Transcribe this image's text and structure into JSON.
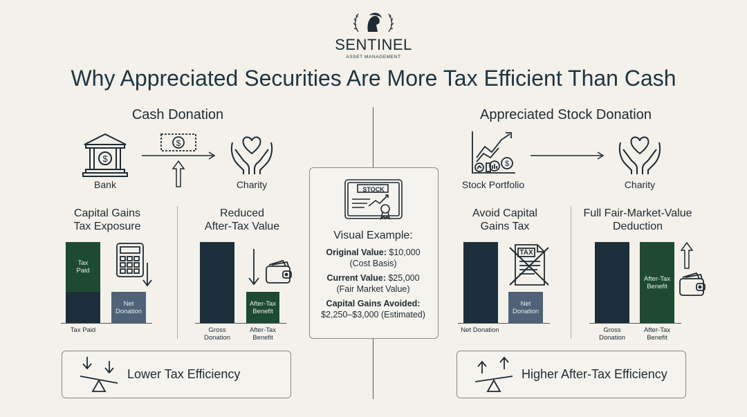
{
  "brand": {
    "name": "SENTINEL",
    "tagline": "ASSET MANAGEMENT"
  },
  "title": "Why Appreciated Securities Are More Tax Efficient Than Cash",
  "cash": {
    "heading": "Cash Donation",
    "bank_label": "Bank",
    "charity_label": "Charity",
    "exposure": {
      "heading_line1": "Capital Gains",
      "heading_line2": "Tax Exposure",
      "bar_tax_paid": "Tax Paid",
      "bar_net_donation": "Net Donation",
      "axis_label": "Tax Paid"
    },
    "reduced": {
      "heading_line1": "Reduced",
      "heading_line2": "After-Tax Value",
      "bar_after_tax": "After-Tax Benefit",
      "axis_gross": "Gross Donation",
      "axis_after_tax": "After-Tax Benefit"
    },
    "footer": "Lower Tax Efficiency"
  },
  "example": {
    "stock_label": "STOCK",
    "heading": "Visual Example:",
    "original_label": "Original Value:",
    "original_value": "$10,000",
    "original_note": "(Cost Basis)",
    "current_label": "Current Value:",
    "current_value": "$25,000",
    "current_note": "(Fair Market Value)",
    "avoided_label": "Capital Gains Avoided:",
    "avoided_value": "$2,250–$3,000 (Estimated)"
  },
  "stock": {
    "heading": "Appreciated Stock Donation",
    "portfolio_label": "Stock Portfolio",
    "charity_label": "Charity",
    "avoid": {
      "heading_line1": "Avoid Capital",
      "heading_line2": "Gains Tax",
      "tax_icon_label": "TAX",
      "bar_net_donation": "Net Donation",
      "axis_net": "Net Donation"
    },
    "fmv": {
      "heading_line1": "Full Fair-Market-Value",
      "heading_line2": "Deduction",
      "bar_after_tax": "After-Tax Benefit",
      "axis_gross": "Gross Donation",
      "axis_after_tax": "After-Tax Benefit"
    },
    "footer": "Higher After-Tax Efficiency"
  },
  "colors": {
    "navy": "#1c2e3a",
    "green": "#1e4a32",
    "slate": "#4f6277",
    "background": "#f3f1ea"
  }
}
